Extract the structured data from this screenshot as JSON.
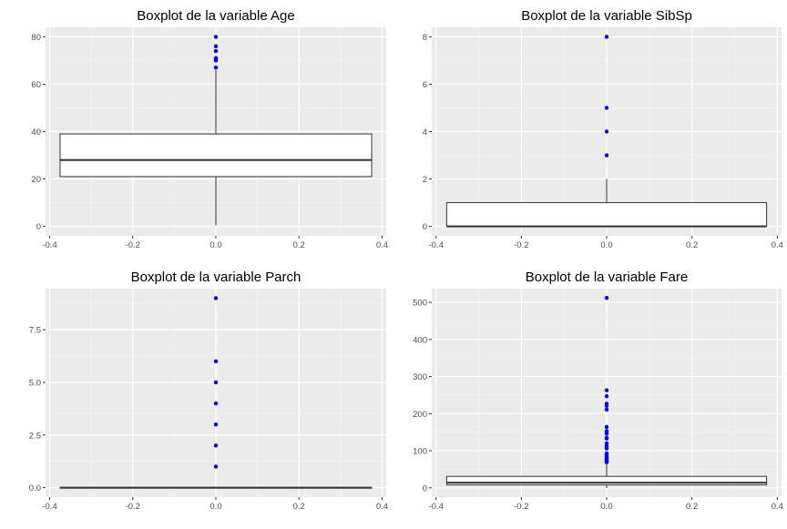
{
  "chart_data": [
    {
      "type": "boxplot",
      "title": "Boxplot de la variable Age",
      "xlim": [
        -0.41,
        0.41
      ],
      "ylim": [
        -4,
        84
      ],
      "x_ticks": [
        -0.4,
        -0.2,
        0.0,
        0.2,
        0.4
      ],
      "x_tick_labels": [
        "-0.4",
        "-0.2",
        "0.0",
        "0.2",
        "0.4"
      ],
      "y_ticks": [
        0,
        20,
        40,
        60,
        80
      ],
      "y_tick_labels": [
        "0",
        "20",
        "40",
        "60",
        "80"
      ],
      "box": {
        "x_min": -0.375,
        "x_max": 0.375,
        "lower_whisker": 0.42,
        "q1": 21,
        "median": 28,
        "q3": 39,
        "upper_whisker": 66
      },
      "outliers": [
        67,
        70,
        70.5,
        71,
        74,
        76,
        80
      ],
      "outlier_color": "#0000ff"
    },
    {
      "type": "boxplot",
      "title": "Boxplot de la variable SibSp",
      "xlim": [
        -0.41,
        0.41
      ],
      "ylim": [
        -0.4,
        8.4
      ],
      "x_ticks": [
        -0.4,
        -0.2,
        0.0,
        0.2,
        0.4
      ],
      "x_tick_labels": [
        "-0.4",
        "-0.2",
        "0.0",
        "0.2",
        "0.4"
      ],
      "y_ticks": [
        0,
        2,
        4,
        6,
        8
      ],
      "y_tick_labels": [
        "0",
        "2",
        "4",
        "6",
        "8"
      ],
      "box": {
        "x_min": -0.375,
        "x_max": 0.375,
        "lower_whisker": 0,
        "q1": 0,
        "median": 0,
        "q3": 1,
        "upper_whisker": 2
      },
      "outliers": [
        3,
        4,
        5,
        8
      ],
      "outlier_color": "#0000ff"
    },
    {
      "type": "boxplot",
      "title": "Boxplot de la variable Parch",
      "xlim": [
        -0.41,
        0.41
      ],
      "ylim": [
        -0.45,
        9.45
      ],
      "x_ticks": [
        -0.4,
        -0.2,
        0.0,
        0.2,
        0.4
      ],
      "x_tick_labels": [
        "-0.4",
        "-0.2",
        "0.0",
        "0.2",
        "0.4"
      ],
      "y_ticks": [
        0,
        2.5,
        5,
        7.5
      ],
      "y_tick_labels": [
        "0.0",
        "2.5",
        "5.0",
        "7.5"
      ],
      "box": {
        "x_min": -0.375,
        "x_max": 0.375,
        "lower_whisker": 0,
        "q1": 0,
        "median": 0,
        "q3": 0,
        "upper_whisker": 0
      },
      "outliers": [
        1,
        2,
        3,
        4,
        5,
        6,
        9
      ],
      "outlier_color": "#0000ff"
    },
    {
      "type": "boxplot",
      "title": "Boxplot de la variable Fare",
      "xlim": [
        -0.41,
        0.41
      ],
      "ylim": [
        -25,
        537
      ],
      "x_ticks": [
        -0.4,
        -0.2,
        0.0,
        0.2,
        0.4
      ],
      "x_tick_labels": [
        "-0.4",
        "-0.2",
        "0.0",
        "0.2",
        "0.4"
      ],
      "y_ticks": [
        0,
        100,
        200,
        300,
        400,
        500
      ],
      "y_tick_labels": [
        "0",
        "100",
        "200",
        "300",
        "400",
        "500"
      ],
      "box": {
        "x_min": -0.375,
        "x_max": 0.375,
        "lower_whisker": 0,
        "q1": 8,
        "median": 14,
        "q3": 31,
        "upper_whisker": 65
      },
      "outliers": [
        69,
        71,
        73,
        76,
        78,
        80,
        83,
        86,
        90,
        93,
        106,
        110,
        113,
        120,
        133,
        135,
        146,
        151,
        153,
        164,
        211,
        221,
        227,
        247,
        263,
        512
      ],
      "outlier_color": "#0000ff"
    }
  ]
}
